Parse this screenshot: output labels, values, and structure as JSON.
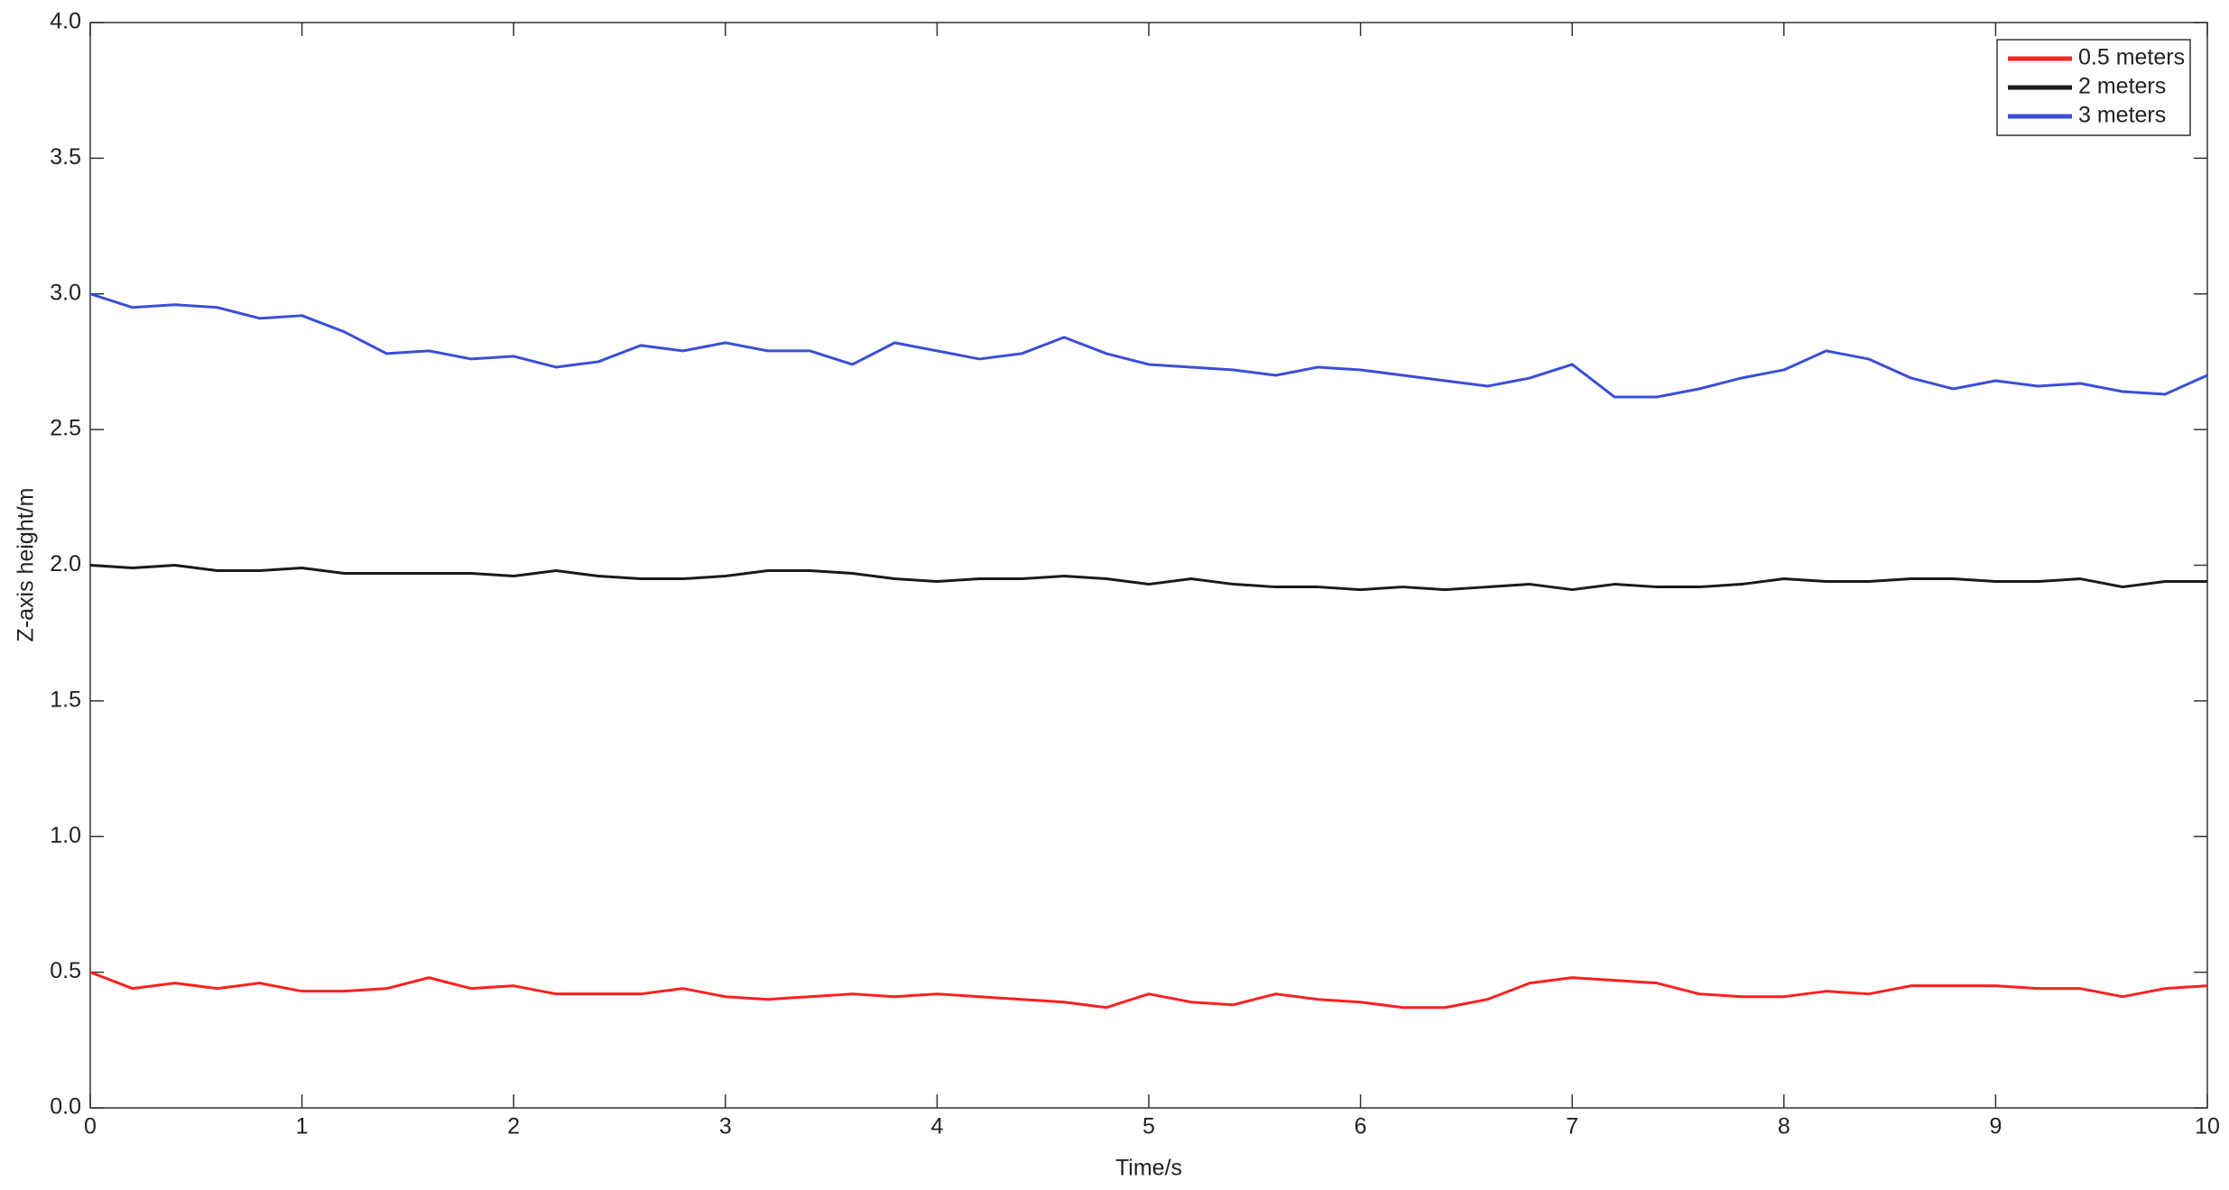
{
  "chart_data": {
    "type": "line",
    "x_label": "Time/s",
    "y_label": "Z-axis height/m",
    "x": [
      0,
      0.2,
      0.4,
      0.6,
      0.8,
      1,
      1.2,
      1.4,
      1.6,
      1.8,
      2,
      2.2,
      2.4,
      2.6,
      2.8,
      3,
      3.2,
      3.4,
      3.6,
      3.8,
      4,
      4.2,
      4.4,
      4.6,
      4.8,
      5,
      5.2,
      5.4,
      5.6,
      5.8,
      6,
      6.2,
      6.4,
      6.6,
      6.8,
      7,
      7.2,
      7.4,
      7.6,
      7.8,
      8,
      8.2,
      8.4,
      8.6,
      8.8,
      9,
      9.2,
      9.4,
      9.6,
      9.8,
      10
    ],
    "series": [
      {
        "name": "0.5 meters",
        "color": "#ff2020",
        "values": [
          0.5,
          0.44,
          0.46,
          0.44,
          0.46,
          0.43,
          0.43,
          0.44,
          0.48,
          0.44,
          0.45,
          0.42,
          0.42,
          0.42,
          0.44,
          0.41,
          0.4,
          0.41,
          0.42,
          0.41,
          0.42,
          0.41,
          0.4,
          0.39,
          0.37,
          0.42,
          0.39,
          0.38,
          0.42,
          0.4,
          0.39,
          0.37,
          0.37,
          0.4,
          0.46,
          0.48,
          0.47,
          0.46,
          0.42,
          0.41,
          0.41,
          0.43,
          0.42,
          0.45,
          0.45,
          0.45,
          0.44,
          0.44,
          0.41,
          0.44,
          0.45
        ]
      },
      {
        "name": "2 meters",
        "color": "#1a1a1a",
        "values": [
          2.0,
          1.99,
          2.0,
          1.98,
          1.98,
          1.99,
          1.97,
          1.97,
          1.97,
          1.97,
          1.96,
          1.98,
          1.96,
          1.95,
          1.95,
          1.96,
          1.98,
          1.98,
          1.97,
          1.95,
          1.94,
          1.95,
          1.95,
          1.96,
          1.95,
          1.93,
          1.95,
          1.93,
          1.92,
          1.92,
          1.91,
          1.92,
          1.91,
          1.92,
          1.93,
          1.91,
          1.93,
          1.92,
          1.92,
          1.93,
          1.95,
          1.94,
          1.94,
          1.95,
          1.95,
          1.94,
          1.94,
          1.95,
          1.92,
          1.94,
          1.94
        ]
      },
      {
        "name": "3 meters",
        "color": "#3a4fd6",
        "values": [
          3.0,
          2.95,
          2.96,
          2.95,
          2.91,
          2.92,
          2.86,
          2.78,
          2.79,
          2.76,
          2.77,
          2.73,
          2.75,
          2.81,
          2.79,
          2.82,
          2.79,
          2.79,
          2.74,
          2.82,
          2.79,
          2.76,
          2.78,
          2.84,
          2.78,
          2.74,
          2.73,
          2.72,
          2.7,
          2.73,
          2.72,
          2.7,
          2.68,
          2.66,
          2.69,
          2.74,
          2.62,
          2.62,
          2.65,
          2.69,
          2.72,
          2.79,
          2.76,
          2.69,
          2.65,
          2.68,
          2.66,
          2.67,
          2.64,
          2.63,
          2.7
        ]
      }
    ],
    "xlim": [
      0,
      10
    ],
    "xticks": [
      0,
      1,
      2,
      3,
      4,
      5,
      6,
      7,
      8,
      9,
      10
    ],
    "ylim": [
      0,
      4
    ],
    "yticks": [
      {
        "value": 0,
        "label": "0.0"
      },
      0.5,
      {
        "value": 1,
        "label": "1.0"
      },
      1.5,
      {
        "value": 2,
        "label": "2.0"
      },
      2.5,
      {
        "value": 3,
        "label": "3.0"
      },
      3.5,
      {
        "value": 4,
        "label": "4.0"
      }
    ],
    "grid": false,
    "legend": "upper-right"
  }
}
